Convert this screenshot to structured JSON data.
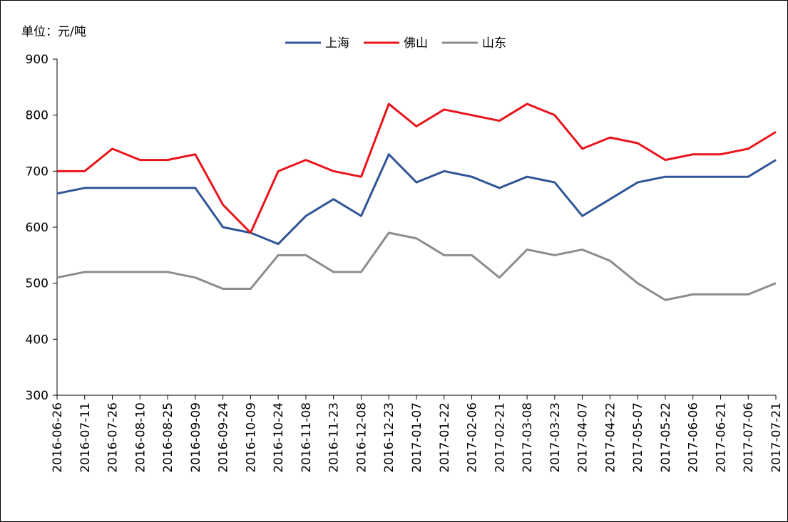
{
  "chart_data": {
    "type": "line",
    "unit_label": "单位：元/吨",
    "x": [
      "2016-06-26",
      "2016-07-11",
      "2016-07-26",
      "2016-08-10",
      "2016-08-25",
      "2016-09-09",
      "2016-09-24",
      "2016-10-09",
      "2016-10-24",
      "2016-11-08",
      "2016-11-23",
      "2016-12-08",
      "2016-12-23",
      "2017-01-07",
      "2017-01-22",
      "2017-02-06",
      "2017-02-21",
      "2017-03-08",
      "2017-03-23",
      "2017-04-07",
      "2017-04-22",
      "2017-05-07",
      "2017-05-22",
      "2017-06-06",
      "2017-06-21",
      "2017-07-06",
      "2017-07-21"
    ],
    "series": [
      {
        "name": "上海",
        "color": "#2f5597",
        "values": [
          660,
          670,
          670,
          670,
          670,
          670,
          600,
          590,
          570,
          620,
          650,
          620,
          730,
          680,
          700,
          690,
          670,
          690,
          680,
          620,
          650,
          680,
          690,
          690,
          690,
          690,
          720
        ]
      },
      {
        "name": "佛山",
        "color": "#e8141b",
        "values": [
          700,
          700,
          740,
          720,
          720,
          730,
          640,
          590,
          700,
          720,
          700,
          690,
          820,
          780,
          810,
          800,
          790,
          820,
          800,
          740,
          760,
          750,
          720,
          730,
          730,
          740,
          770
        ]
      },
      {
        "name": "山东",
        "color": "#8c8c8c",
        "values": [
          510,
          520,
          520,
          520,
          520,
          510,
          490,
          490,
          550,
          550,
          520,
          520,
          590,
          580,
          550,
          550,
          510,
          560,
          550,
          560,
          540,
          500,
          470,
          480,
          480,
          480,
          500
        ]
      }
    ],
    "ylim": [
      300,
      900
    ],
    "yticks": [
      300,
      400,
      500,
      600,
      700,
      800,
      900
    ],
    "legend": "top"
  }
}
